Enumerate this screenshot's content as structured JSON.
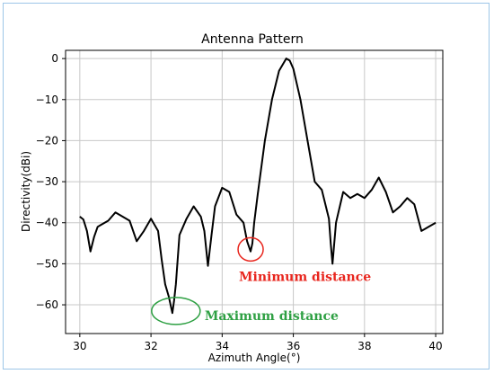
{
  "chart_data": {
    "type": "line",
    "title": "Antenna Pattern",
    "xlabel": "Azimuth Angle(°)",
    "ylabel": "Directivity(dBi)",
    "xlim": [
      29.6,
      40.2
    ],
    "ylim": [
      -67,
      2
    ],
    "xticks": [
      30,
      32,
      34,
      36,
      38,
      40
    ],
    "yticks": [
      0,
      -10,
      -20,
      -30,
      -40,
      -50,
      -60
    ],
    "grid": true,
    "line_color": "#000000",
    "series": [
      {
        "x": [
          30.0,
          30.1,
          30.2,
          30.3,
          30.4,
          30.5,
          30.6,
          30.8,
          31.0,
          31.2,
          31.4,
          31.6,
          31.8,
          32.0,
          32.2,
          32.3,
          32.4,
          32.5,
          32.6,
          32.65,
          32.7,
          32.8,
          33.0,
          33.2,
          33.4,
          33.5,
          33.6,
          33.7,
          33.8,
          34.0,
          34.2,
          34.4,
          34.6,
          34.7,
          34.8,
          34.85,
          34.9,
          35.0,
          35.2,
          35.4,
          35.6,
          35.8,
          35.9,
          36.0,
          36.2,
          36.4,
          36.6,
          36.8,
          37.0,
          37.05,
          37.1,
          37.2,
          37.4,
          37.6,
          37.8,
          38.0,
          38.2,
          38.4,
          38.6,
          38.8,
          39.0,
          39.2,
          39.4,
          39.6,
          39.8,
          40.0
        ],
        "y": [
          -38.5,
          -39.2,
          -42.0,
          -47.0,
          -43.5,
          -41.0,
          -40.5,
          -39.5,
          -37.5,
          -38.5,
          -39.5,
          -44.5,
          -42.0,
          -39.0,
          -42.0,
          -49.0,
          -55.0,
          -58.0,
          -62.0,
          -59.0,
          -55.0,
          -43.0,
          -39.0,
          -36.0,
          -38.5,
          -42.0,
          -50.5,
          -43.0,
          -36.0,
          -31.5,
          -32.5,
          -38.0,
          -40.0,
          -44.5,
          -47.0,
          -45.0,
          -40.0,
          -33.0,
          -20.0,
          -10.0,
          -3.0,
          0.0,
          -0.5,
          -2.5,
          -10.0,
          -20.0,
          -30.0,
          -32.0,
          -39.0,
          -45.0,
          -50.0,
          -40.0,
          -32.5,
          -34.0,
          -33.0,
          -34.0,
          -32.0,
          -29.0,
          -32.5,
          -37.5,
          -36.0,
          -34.0,
          -35.5,
          -42.0,
          -41.0,
          -40.0
        ]
      }
    ],
    "annotations": [
      {
        "text": "Minimum distance",
        "color": "#e8251d",
        "marker": "circle",
        "x": 34.8,
        "y": -46.5
      },
      {
        "text": "Maximum distance",
        "color": "#2ea043",
        "marker": "ellipse",
        "x": 32.7,
        "y": -61.5
      }
    ]
  }
}
